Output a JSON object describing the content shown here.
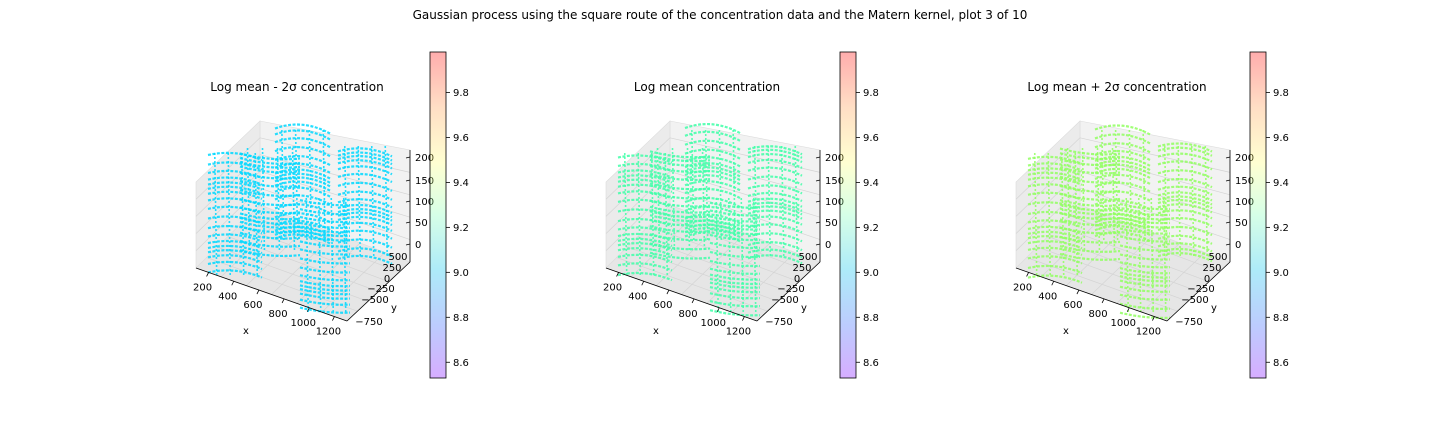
{
  "figure_title": "Gaussian process using the square route of the concentration data and the Matern kernel, plot 3 of 10",
  "chart_data": [
    {
      "type": "scatter",
      "title": "Log mean - 2σ concentration",
      "xlabel": "x",
      "ylabel": "y",
      "zlabel": "",
      "x_ticks": [
        "200",
        "400",
        "600",
        "800",
        "1000",
        "1200"
      ],
      "y_ticks": [
        "−750",
        "−500",
        "−250",
        "0",
        "250",
        "500"
      ],
      "z_ticks": [
        "0",
        "50",
        "100",
        "150",
        "200"
      ],
      "xlim": [
        100,
        1250
      ],
      "ylim": [
        -900,
        650
      ],
      "zlim": [
        0,
        210
      ],
      "grid": true,
      "point_color": "#00d8ff",
      "colorbar": {
        "colormap": "rainbow",
        "range": [
          8.53,
          9.98
        ],
        "ticks": [
          "8.6",
          "8.8",
          "9.0",
          "9.2",
          "9.4",
          "9.6",
          "9.8"
        ]
      }
    },
    {
      "type": "scatter",
      "title": "Log mean concentration",
      "xlabel": "x",
      "ylabel": "y",
      "zlabel": "",
      "x_ticks": [
        "200",
        "400",
        "600",
        "800",
        "1000",
        "1200"
      ],
      "y_ticks": [
        "−750",
        "−500",
        "−250",
        "0",
        "250",
        "500"
      ],
      "z_ticks": [
        "0",
        "50",
        "100",
        "150",
        "200"
      ],
      "xlim": [
        100,
        1250
      ],
      "ylim": [
        -900,
        650
      ],
      "zlim": [
        0,
        210
      ],
      "grid": true,
      "point_color": "#40ffa8",
      "colorbar": {
        "colormap": "rainbow",
        "range": [
          8.53,
          9.98
        ],
        "ticks": [
          "8.6",
          "8.8",
          "9.0",
          "9.2",
          "9.4",
          "9.6",
          "9.8"
        ]
      }
    },
    {
      "type": "scatter",
      "title": "Log mean + 2σ concentration",
      "xlabel": "x",
      "ylabel": "y",
      "zlabel": "",
      "x_ticks": [
        "200",
        "400",
        "600",
        "800",
        "1000",
        "1200"
      ],
      "y_ticks": [
        "−750",
        "−500",
        "−250",
        "0",
        "250",
        "500"
      ],
      "z_ticks": [
        "0",
        "50",
        "100",
        "150",
        "200"
      ],
      "xlim": [
        100,
        1250
      ],
      "ylim": [
        -900,
        650
      ],
      "zlim": [
        0,
        210
      ],
      "grid": true,
      "point_color": "#90ff60",
      "colorbar": {
        "colormap": "rainbow",
        "range": [
          8.53,
          9.98
        ],
        "ticks": [
          "8.6",
          "8.8",
          "9.0",
          "9.2",
          "9.4",
          "9.6",
          "9.8"
        ]
      }
    }
  ]
}
